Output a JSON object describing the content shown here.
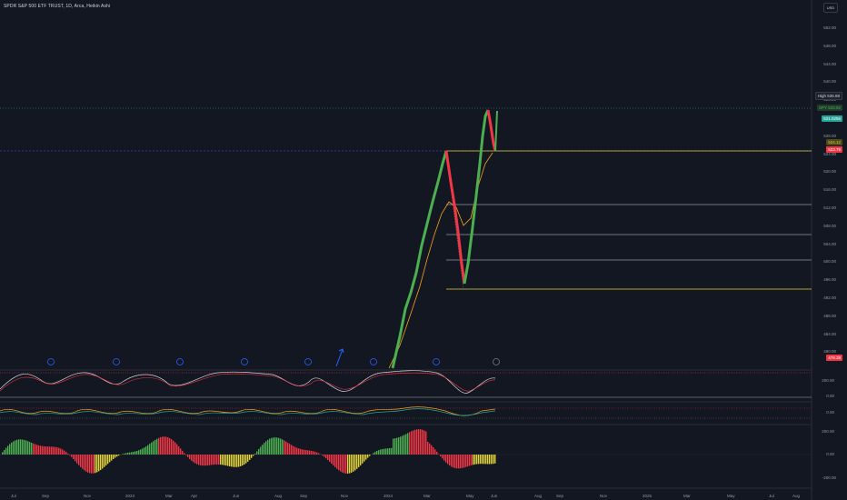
{
  "header": {
    "title": "SPDR S&P 500 ETF TRUST, 1D, Arca, Heikin Ashi",
    "currency_button": "USD"
  },
  "price_axis": {
    "ticks": [
      "552.00",
      "548.00",
      "544.00",
      "540.00",
      "536.00",
      "532.00",
      "528.00",
      "524.00",
      "520.00",
      "516.00",
      "512.00",
      "508.00",
      "504.00",
      "500.00",
      "496.00",
      "492.00",
      "488.00",
      "484.00",
      "480.00"
    ]
  },
  "price_tags": {
    "high_label": "High",
    "high_value": "536.88",
    "green_label": "SPY",
    "green_value": "533.92",
    "current_value": "531.0256",
    "yellow_value": "524.12",
    "red_value": "523.79",
    "bottom_red_value": "478.38"
  },
  "osc1_axis": {
    "ticks": [
      "200.00",
      "0.00"
    ]
  },
  "osc2_axis": {
    "ticks": [
      "0.00"
    ]
  },
  "osc3_axis": {
    "ticks": [
      "200.00",
      "0.00",
      "-200.00"
    ]
  },
  "time_axis": {
    "labels": [
      "Jul",
      "Sep",
      "Nov",
      "2023",
      "Mar",
      "Apr",
      "Jun",
      "Aug",
      "Sep",
      "Nov",
      "2024",
      "Mar",
      "May",
      "Jun",
      "Aug",
      "Sep",
      "Nov",
      "2025",
      "Mar",
      "May",
      "Jul",
      "Aug"
    ]
  },
  "colors": {
    "background": "#131722",
    "up": "#26a69a",
    "bull": "#4caf50",
    "bear": "#f23645",
    "yellow": "#e3d33b",
    "white_line": "#d1d4dc"
  },
  "icons": [
    "event-marker-icon",
    "arrow-up-icon"
  ]
}
